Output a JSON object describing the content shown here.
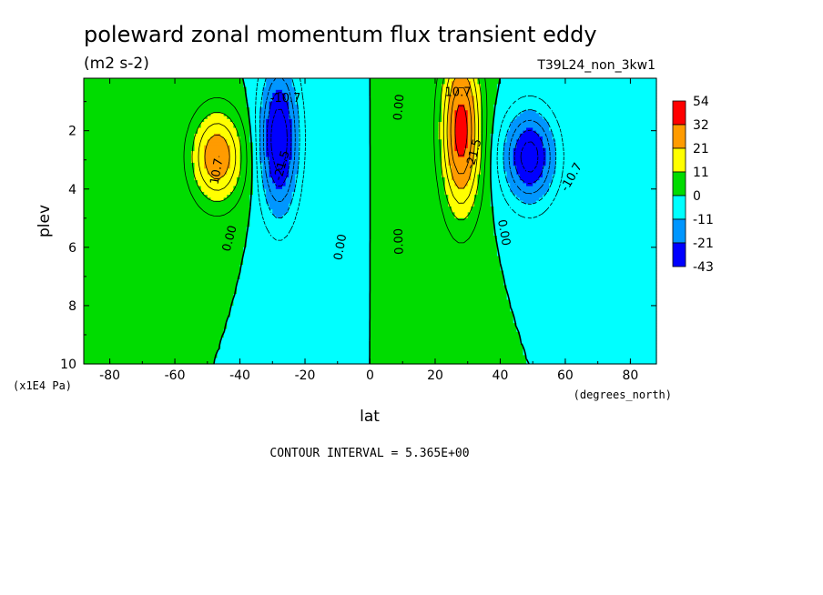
{
  "chart_data": {
    "type": "heatmap",
    "title": "poleward zonal momentum flux transient eddy",
    "units": "(m2 s-2)",
    "run_label": "T39L24_non_3kw1",
    "xlabel": "lat",
    "x_units": "(degrees_north)",
    "ylabel": "plev",
    "y_units": "(x1E4 Pa)",
    "footer": "CONTOUR INTERVAL = 5.365E+00",
    "xlim": [
      -88,
      88
    ],
    "ylim": [
      0.2,
      10
    ],
    "y_inverted": true,
    "x_ticks": [
      "-80",
      "-60",
      "-40",
      "-20",
      "0",
      "20",
      "40",
      "60",
      "80"
    ],
    "y_ticks": [
      "2",
      "4",
      "6",
      "8",
      "10"
    ],
    "contour_labels": [
      {
        "text": "10.7",
        "lat": -47,
        "plev": 3.4,
        "rotate": -80
      },
      {
        "text": "-10.7",
        "lat": -26,
        "plev": 0.9,
        "rotate": 0
      },
      {
        "text": "-21.5",
        "lat": -27,
        "plev": 3.2,
        "rotate": -75
      },
      {
        "text": "0.00",
        "lat": -43,
        "plev": 5.7,
        "rotate": -75
      },
      {
        "text": "0.00",
        "lat": -9,
        "plev": 6.0,
        "rotate": -80
      },
      {
        "text": "0.00",
        "lat": 9,
        "plev": 1.2,
        "rotate": -85
      },
      {
        "text": "0.00",
        "lat": 9,
        "plev": 5.8,
        "rotate": -92
      },
      {
        "text": "10.7",
        "lat": 27,
        "plev": 0.7,
        "rotate": 0
      },
      {
        "text": "-21.5",
        "lat": 32,
        "plev": 2.8,
        "rotate": -75
      },
      {
        "text": "0.00",
        "lat": 41,
        "plev": 5.5,
        "rotate": 80
      },
      {
        "text": "-10.7",
        "lat": 62,
        "plev": 3.6,
        "rotate": -60
      }
    ],
    "features": [
      {
        "name": "positive-max-sh",
        "lat": -47,
        "plev": 2.9,
        "peak": 27,
        "spread_lat": 8,
        "spread_plev": 1.6
      },
      {
        "name": "negative-min-sh",
        "lat": -28,
        "plev": 2.3,
        "peak": -32,
        "spread_lat": 6,
        "spread_plev": 2.6
      },
      {
        "name": "positive-max-nh",
        "lat": 28,
        "plev": 2.0,
        "peak": 36,
        "spread_lat": 6,
        "spread_plev": 2.8
      },
      {
        "name": "negative-min-nh",
        "lat": 49,
        "plev": 2.9,
        "peak": -30,
        "spread_lat": 8,
        "spread_plev": 1.6
      }
    ],
    "colorbar": {
      "levels": [
        "54",
        "32",
        "21",
        "11",
        "0",
        "-11",
        "-21",
        "-43"
      ],
      "colors": [
        "#ff0000",
        "#ff9b00",
        "#ffff00",
        "#00dc00",
        "#00ffff",
        "#0096ff",
        "#0000ff"
      ]
    }
  }
}
